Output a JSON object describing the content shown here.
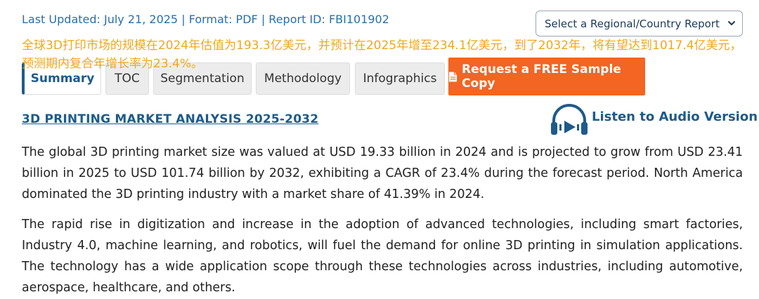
{
  "meta": {
    "last_updated": "Last Updated: July 21, 2025",
    "format": "Format: PDF",
    "report_id": "Report ID: FBI101902",
    "separator": "|"
  },
  "region_select": {
    "selected": "Select a Regional/Country Report"
  },
  "overlay_text": "全球3D打印市场的规模在2024年估值为193.3亿美元，并预计在2025年增至234.1亿美元，到了2032年，将有望达到1017.4亿美元，预测期内复合年增长率为23.4%。",
  "tabs": {
    "summary": "Summary",
    "toc": "TOC",
    "segmentation": "Segmentation",
    "methodology": "Methodology",
    "infographics": "Infographics",
    "cta": "Request a FREE Sample Copy"
  },
  "section": {
    "title": "3D PRINTING MARKET ANALYSIS 2025-2032",
    "audio_label": "Listen to Audio Version"
  },
  "body": {
    "paragraph1": "The global 3D printing market size was valued at USD 19.33 billion in 2024 and is projected to grow from USD 23.41 billion in 2025 to USD 101.74 billion by 2032, exhibiting a CAGR of 23.4% during the forecast period. North America dominated the 3D printing industry with a market share of 41.39% in 2024.",
    "paragraph2": "The rapid rise in digitization and increase in the adoption of advanced technologies, including smart factories, Industry 4.0, machine learning, and robotics, will fuel the demand for online 3D printing in simulation applications. The technology has a wide application scope through these technologies across industries, including automotive, aerospace, healthcare, and others."
  },
  "colors": {
    "brand_blue": "#1e5b8a",
    "link_blue": "#2a6fa8",
    "cta_orange": "#f26522",
    "overlay_yellow": "#f0a818"
  },
  "icons": {
    "chevron": "chevron-down-icon",
    "audio": "headphones-play-icon",
    "document": "document-icon"
  }
}
